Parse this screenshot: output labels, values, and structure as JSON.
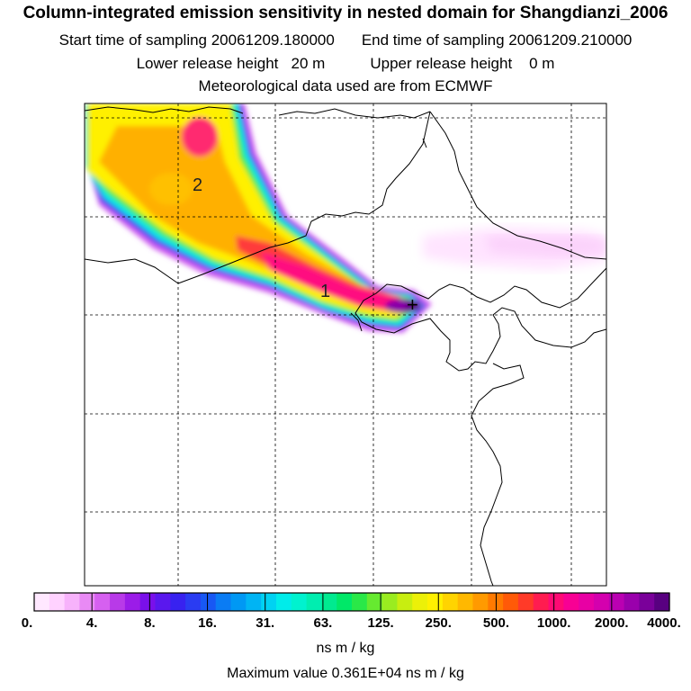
{
  "header": {
    "title": "Column-integrated emission sensitivity in nested domain for Shangdianzi_2006",
    "start_label": "Start time of sampling 20061209.180000",
    "end_label": "End time of sampling 20061209.210000",
    "lower_label": "Lower release height   20 m",
    "upper_label": "Upper release height    0 m",
    "met_label": "Meteorological data used are from ECMWF"
  },
  "map": {
    "markers": [
      "1",
      "2"
    ],
    "receptor_symbol": "+"
  },
  "colorbar": {
    "tick_labels": [
      "0.",
      "4.",
      "8.",
      "16.",
      "31.",
      "63.",
      "125.",
      "250.",
      "500.",
      "1000.",
      "2000.",
      "4000."
    ],
    "colors": [
      "#ffe8ff",
      "#ffd2ff",
      "#f7b2fb",
      "#e98af5",
      "#d660f0",
      "#b83ae8",
      "#9b1ce8",
      "#7a10ea",
      "#5a18ee",
      "#3822f0",
      "#2a3cf2",
      "#1858f4",
      "#0a7cf4",
      "#0098f4",
      "#00b4f4",
      "#00d2f2",
      "#00ecea",
      "#00f2cf",
      "#00eeb0",
      "#00ea90",
      "#00e868",
      "#2ae848",
      "#66ea30",
      "#9aec20",
      "#c8ee10",
      "#ecf008",
      "#fff000",
      "#ffd400",
      "#ffb800",
      "#ff9a00",
      "#ff7a00",
      "#ff5a08",
      "#ff3a28",
      "#ff1c50",
      "#ff0a74",
      "#f80094",
      "#e800a4",
      "#d400ae",
      "#ba00b2",
      "#9a00ac",
      "#7a009a",
      "#580080"
    ],
    "units": "ns m / kg",
    "max_value": "Maximum value  0.361E+04 ns m / kg"
  },
  "chart_data": {
    "type": "heatmap",
    "title": "Column-integrated emission sensitivity in nested domain for Shangdianzi_2006",
    "colorbar_levels": [
      0,
      4,
      8,
      16,
      31,
      63,
      125,
      250,
      500,
      1000,
      2000,
      4000
    ],
    "colorbar_units": "ns m / kg",
    "maximum_value": 3610
  }
}
